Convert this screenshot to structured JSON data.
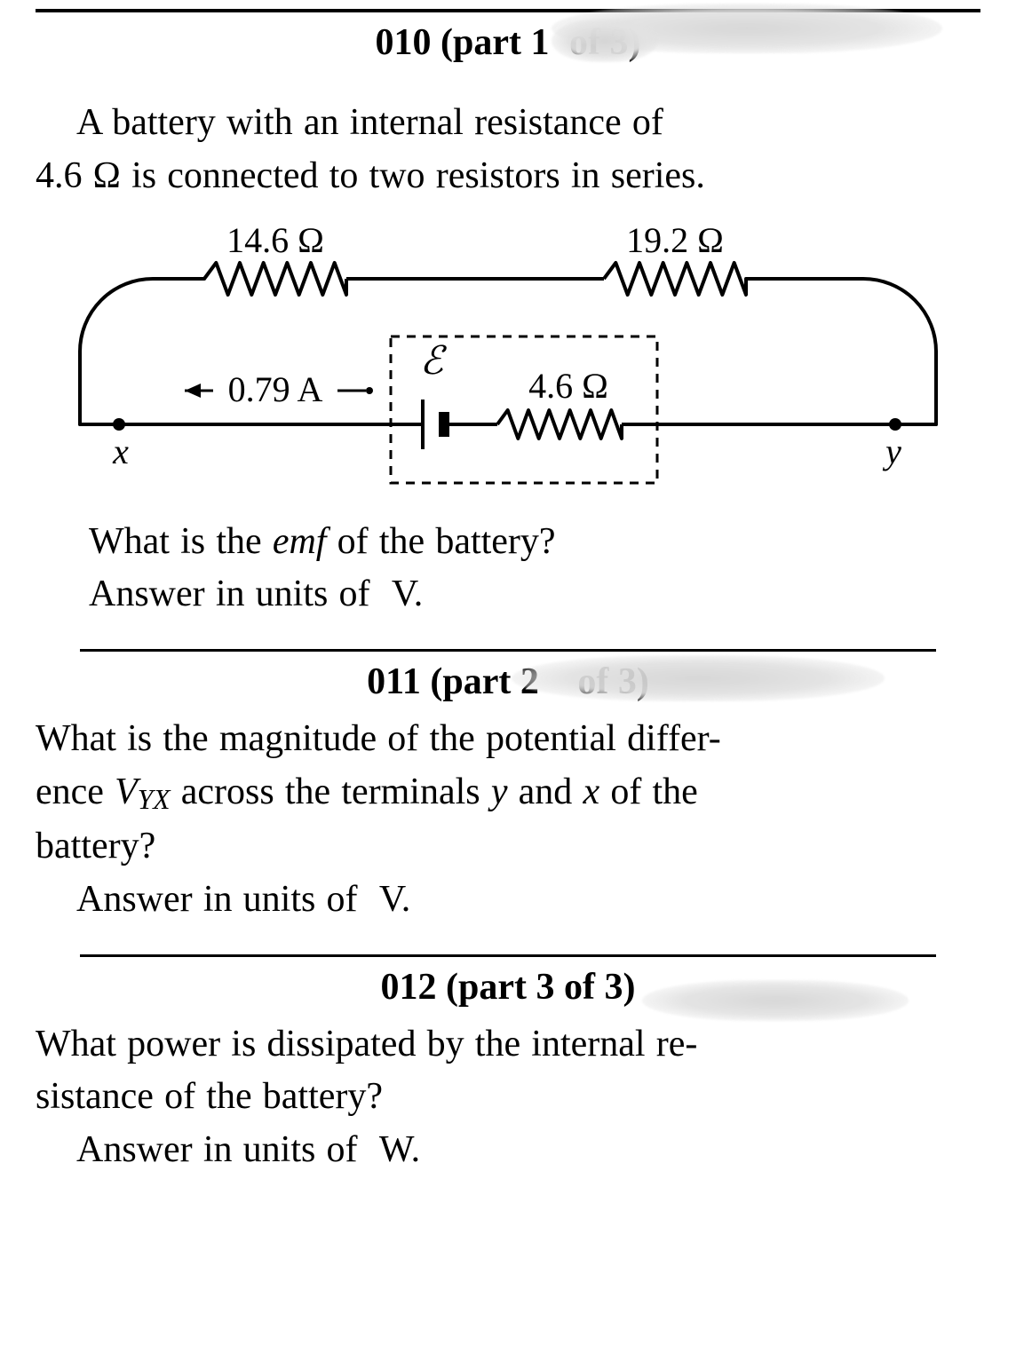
{
  "problems": {
    "p010": {
      "heading_prefix": "010 (part ",
      "heading_obscured_1": "1",
      "heading_obscured_2": "of 3)",
      "intro_text_1": "A battery with an internal resistance of",
      "intro_text_2": "4.6 Ω is connected to two resistors in series.",
      "question_line_1": "What is the ",
      "question_emf_word": "emf ",
      "question_line_1b": "of the battery?",
      "answer_line": "Answer in units of  V."
    },
    "p011": {
      "heading_prefix": "011 (part ",
      "heading_obscured_a": "2",
      "heading_obscured_b": "of 3)",
      "q_line1_pre": "What is the magnitude of the potential differ-",
      "q_line2_a": "ence ",
      "q_line2_var": "V",
      "q_line2_sub": "YX",
      "q_line2_b": " across the terminals ",
      "q_line2_y": "y",
      "q_line2_and": " and ",
      "q_line2_x": "x",
      "q_line2_c": " of the",
      "q_line3": "battery?",
      "answer_line": "Answer in units of  V."
    },
    "p012": {
      "heading": "012 (part 3 of 3)",
      "q_line1": "What power is dissipated by the internal re-",
      "q_line2": "sistance of the battery?",
      "answer_line": "Answer in units of  W."
    }
  },
  "circuit": {
    "type": "circuit-diagram",
    "stroke_color": "#000000",
    "stroke_width": 4,
    "dash_pattern": "10 8",
    "r1_label": "14.6 Ω",
    "r2_label": "19.2 Ω",
    "r_internal_label": "4.6 Ω",
    "current_label": "0.79 A",
    "emf_label": "ℰ",
    "node_x_label": "x",
    "node_y_label": "y",
    "label_fontsize": 40,
    "var_fontsize": 40,
    "emf_fontsize": 44
  },
  "style": {
    "background_color": "#ffffff",
    "text_color": "#000000",
    "smudge_color": "#d4d4d4"
  }
}
